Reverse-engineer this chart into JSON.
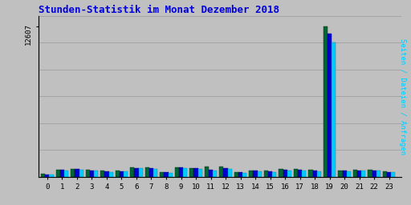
{
  "title": "Stunden-Statistik im Monat Dezember 2018",
  "ylabel": "Seiten / Dateien / Anfragen",
  "xlabel_hours": [
    0,
    1,
    2,
    3,
    4,
    5,
    6,
    7,
    8,
    9,
    10,
    11,
    12,
    13,
    14,
    15,
    16,
    17,
    18,
    19,
    20,
    21,
    22,
    23
  ],
  "seiten": [
    280,
    620,
    680,
    610,
    510,
    540,
    820,
    790,
    410,
    830,
    770,
    860,
    880,
    420,
    570,
    540,
    640,
    640,
    580,
    12607,
    560,
    590,
    610,
    450
  ],
  "dateien": [
    230,
    580,
    640,
    570,
    470,
    500,
    770,
    750,
    370,
    780,
    720,
    580,
    720,
    380,
    530,
    490,
    590,
    590,
    530,
    12000,
    510,
    550,
    570,
    410
  ],
  "anfragen": [
    200,
    540,
    600,
    530,
    430,
    460,
    720,
    700,
    330,
    720,
    660,
    510,
    660,
    340,
    470,
    430,
    540,
    540,
    480,
    11300,
    460,
    510,
    530,
    370
  ],
  "color_seiten": "#006633",
  "color_dateien": "#0000CC",
  "color_anfragen": "#00CCFF",
  "background_plot": "#C0C0C0",
  "background_fig": "#C0C0C0",
  "title_color": "#0000DD",
  "ylabel_color": "#00CCFF",
  "ylabel_color2": "#0000CC",
  "ymax": 13500,
  "bar_width": 0.28
}
